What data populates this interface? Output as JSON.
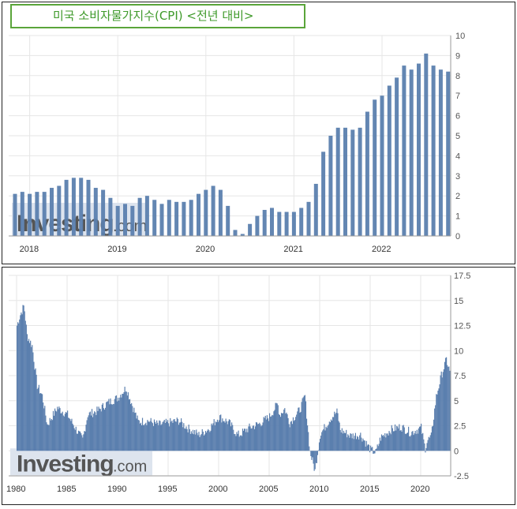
{
  "title": "미국 소비자물가지수(CPI) <전년 대비>",
  "watermark": {
    "brand": "Investing",
    "suffix": ".com"
  },
  "colors": {
    "bar": "#5b7fae",
    "grid": "#e6e6e6",
    "title_border": "#5aa53a",
    "title_text": "#3f9a2b"
  },
  "charts": [
    {
      "type": "bar",
      "x_ticks": [
        "2018",
        "2019",
        "2020",
        "2021",
        "2022"
      ],
      "y_ticks": [
        "0",
        "1",
        "2",
        "3",
        "4",
        "5",
        "6",
        "7",
        "8",
        "9",
        "10"
      ],
      "ylim": [
        0,
        10
      ],
      "axis_position": "right",
      "grid": true
    },
    {
      "type": "area",
      "x_ticks": [
        "1980",
        "1985",
        "1990",
        "1995",
        "2000",
        "2005",
        "2010",
        "2015",
        "2020"
      ],
      "y_ticks": [
        "-2.5",
        "0",
        "2.5",
        "5",
        "7.5",
        "10",
        "12.5",
        "15",
        "17.5"
      ],
      "ylim": [
        -2.5,
        17.5
      ],
      "axis_position": "right",
      "grid": true
    }
  ],
  "chart_data": [
    {
      "type": "bar",
      "title": "미국 소비자물가지수(CPI) <전년 대비>",
      "ylim": [
        0,
        10
      ],
      "series": [
        {
          "values": [
            2.1,
            2.2,
            2.1,
            2.2,
            2.2,
            2.4,
            2.5,
            2.8,
            2.9,
            2.9,
            2.8,
            2.4,
            2.3,
            1.9,
            1.5,
            1.6,
            1.5,
            1.9,
            2.0,
            1.8,
            1.6,
            1.8,
            1.7,
            1.7,
            1.8,
            2.1,
            2.3,
            2.5,
            2.3,
            1.5,
            0.3,
            0.1,
            0.6,
            1.0,
            1.3,
            1.4,
            1.2,
            1.2,
            1.2,
            1.4,
            1.7,
            2.6,
            4.2,
            5.0,
            5.4,
            5.4,
            5.3,
            5.4,
            6.2,
            6.8,
            7.0,
            7.5,
            7.9,
            8.5,
            8.3,
            8.6,
            9.1,
            8.5,
            8.3,
            8.2
          ],
          "start": "2017-11",
          "frequency": "monthly"
        }
      ]
    },
    {
      "type": "area",
      "ylim": [
        -2.5,
        17.5
      ],
      "series": [
        {
          "x": [
            1980,
            1980.3,
            1980.7,
            1981,
            1981.5,
            1982,
            1982.5,
            1983,
            1984,
            1985,
            1986,
            1986.5,
            1987,
            1988,
            1989,
            1990,
            1990.8,
            1991.5,
            1992,
            1993,
            1994,
            1995,
            1996,
            1997,
            1998,
            1999,
            2000,
            2001,
            2001.8,
            2002,
            2003,
            2004,
            2005,
            2005.8,
            2006,
            2006.5,
            2007,
            2008.0,
            2008.5,
            2009.0,
            2009.5,
            2010,
            2011,
            2011.7,
            2012,
            2013,
            2014,
            2015,
            2015.5,
            2016,
            2017,
            2018,
            2019,
            2020.0,
            2020.4,
            2020.6,
            2021,
            2021.5,
            2022,
            2022.5,
            2022.9
          ],
          "y": [
            12.5,
            13.5,
            14.5,
            11.5,
            10.5,
            6.5,
            5.5,
            2.6,
            4.3,
            3.6,
            1.9,
            1.1,
            3.6,
            4.0,
            4.8,
            5.3,
            6.3,
            4.3,
            2.9,
            3.0,
            2.6,
            2.8,
            3.0,
            2.2,
            1.6,
            2.2,
            3.4,
            2.8,
            1.6,
            1.6,
            2.3,
            2.7,
            3.4,
            4.7,
            3.6,
            4.2,
            2.8,
            4.1,
            5.5,
            -0.1,
            -2.0,
            1.6,
            3.2,
            3.9,
            2.1,
            1.5,
            1.6,
            0.1,
            -0.2,
            1.3,
            2.1,
            2.4,
            1.8,
            2.3,
            0.2,
            1.0,
            1.4,
            5.4,
            7.5,
            9.1,
            7.7
          ]
        }
      ]
    }
  ]
}
